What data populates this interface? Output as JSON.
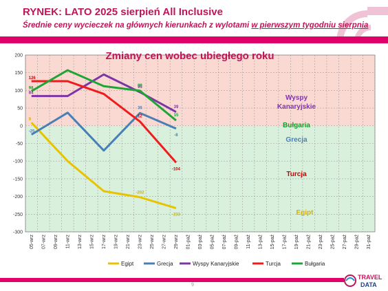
{
  "header": {
    "title": "RYNEK: LATO 2025 sierpień All Inclusive",
    "subtitle_pre": "Średnie ceny wycieczek na głównych kierunkach z wylotami ",
    "subtitle_u": "w pierwszym tygodniu sierpnia"
  },
  "footer": {
    "page_number": "9",
    "logo_top": "TRAVEL",
    "logo_bottom": "DATA"
  },
  "chart_data": {
    "type": "line",
    "title": "Zmiany cen wobec ubiegłego roku",
    "categories": [
      "05-wrz",
      "07-wrz",
      "09-wrz",
      "11-wrz",
      "13-wrz",
      "15-wrz",
      "17-wrz",
      "19-wrz",
      "21-wrz",
      "23-wrz",
      "25-wrz",
      "27-wrz",
      "29-wrz",
      "01-paź",
      "03-paź",
      "05-paź",
      "07-paź",
      "09-paź",
      "11-paź",
      "13-paź",
      "15-paź",
      "17-paź",
      "19-paź",
      "21-paź",
      "23-paź",
      "25-paź",
      "27-paź",
      "29-paź",
      "31-paź"
    ],
    "ylim": [
      -300,
      200
    ],
    "yticks": [
      200,
      150,
      100,
      50,
      0,
      -50,
      -100,
      -150,
      -200,
      -250,
      -300
    ],
    "positive_zone_color": "#fbd9d3",
    "negative_zone_color": "#d9f0dc",
    "series": [
      {
        "name": "Egipt",
        "color": "#e8c400",
        "label_color": "#d4b000",
        "points": [
          [
            0,
            9
          ],
          [
            3,
            -100
          ],
          [
            6,
            -185
          ],
          [
            9,
            -202
          ],
          [
            12,
            -233
          ]
        ],
        "labels": [
          {
            "i": 0,
            "text": "9"
          },
          {
            "i": 9,
            "text": "-202"
          },
          {
            "i": 12,
            "text": "-233"
          }
        ]
      },
      {
        "name": "Grecja",
        "color": "#4a7fb5",
        "label_color": "#4a7fb5",
        "points": [
          [
            0,
            -25
          ],
          [
            3,
            37
          ],
          [
            6,
            -70
          ],
          [
            9,
            36
          ],
          [
            12,
            -8
          ]
        ],
        "labels": [
          {
            "i": 0,
            "text": "-25"
          },
          {
            "i": 9,
            "text": "36"
          },
          {
            "i": 12,
            "text": "-8"
          }
        ]
      },
      {
        "name": "Wyspy Kanaryjskie",
        "color": "#7d35a6",
        "label_color": "#7d35a6",
        "points": [
          [
            0,
            84
          ],
          [
            3,
            84
          ],
          [
            6,
            145
          ],
          [
            9,
            95
          ],
          [
            12,
            39
          ]
        ],
        "labels": [
          {
            "i": 0,
            "text": "84"
          },
          {
            "i": 9,
            "text": "95"
          },
          {
            "i": 12,
            "text": "39"
          }
        ]
      },
      {
        "name": "Turcja",
        "color": "#ee1c1c",
        "label_color": "#cc0000",
        "points": [
          [
            0,
            126
          ],
          [
            3,
            126
          ],
          [
            6,
            90
          ],
          [
            9,
            12
          ],
          [
            12,
            -104
          ]
        ],
        "labels": [
          {
            "i": 0,
            "text": "126"
          },
          {
            "i": 9,
            "text": "12"
          },
          {
            "i": 12,
            "text": "-104"
          }
        ]
      },
      {
        "name": "Bułgaria",
        "color": "#1fa535",
        "label_color": "#1a9a2e",
        "points": [
          [
            0,
            98
          ],
          [
            3,
            157
          ],
          [
            6,
            112
          ],
          [
            9,
            99
          ],
          [
            12,
            15
          ]
        ],
        "labels": [
          {
            "i": 0,
            "text": "98"
          },
          {
            "i": 9,
            "text": "99"
          },
          {
            "i": 12,
            "text": "15"
          }
        ]
      }
    ],
    "side_labels": [
      {
        "text": "Wyspy",
        "color": "#7d35a6"
      },
      {
        "text": "Kanaryjskie",
        "color": "#7d35a6"
      },
      {
        "text": "Bułgaria",
        "color": "#1a9a2e"
      },
      {
        "text": "Grecja",
        "color": "#4a7fb5"
      },
      {
        "text": "Turcja",
        "color": "#cc0000"
      },
      {
        "text": "Egipt",
        "color": "#d4b000"
      }
    ],
    "legend_position": "bottom"
  }
}
